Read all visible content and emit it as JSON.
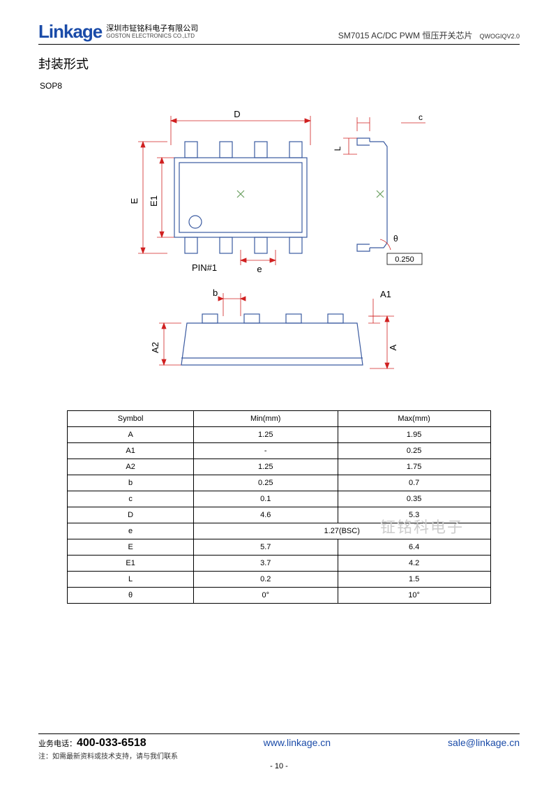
{
  "header": {
    "logo": "Linkage",
    "company_cn": "深圳市钲铭科电子有限公司",
    "company_en": "GOSTON ELECTRONICS CO.,LTD",
    "product": "SM7015 AC/DC PWM 恒压开关芯片",
    "doc_ver": "QWOGIQV2.0"
  },
  "section_title": "封装形式",
  "package_name": "SOP8",
  "watermark": "钲铭科电子",
  "diagram": {
    "type": "engineering-drawing",
    "labels": {
      "D": "D",
      "E": "E",
      "E1": "E1",
      "e": "e",
      "pin1": "PIN#1",
      "c": "c",
      "L": "L",
      "theta": "θ",
      "ref": "0.250",
      "b": "b",
      "A": "A",
      "A1": "A1",
      "A2": "A2"
    },
    "colors": {
      "outline": "#3a5aa0",
      "dimension": "#d02020",
      "background": "#ffffff"
    },
    "line_width_outline": 1.2,
    "line_width_dim": 0.8
  },
  "table": {
    "columns": [
      "Symbol",
      "Min(mm)",
      "Max(mm)"
    ],
    "rows": [
      [
        "A",
        "1.25",
        "1.95"
      ],
      [
        "A1",
        "-",
        "0.25"
      ],
      [
        "A2",
        "1.25",
        "1.75"
      ],
      [
        "b",
        "0.25",
        "0.7"
      ],
      [
        "c",
        "0.1",
        "0.35"
      ],
      [
        "D",
        "4.6",
        "5.3"
      ],
      [
        "e",
        {
          "colspan": 2,
          "value": "1.27(BSC)"
        }
      ],
      [
        "E",
        "5.7",
        "6.4"
      ],
      [
        "E1",
        "3.7",
        "4.2"
      ],
      [
        "L",
        "0.2",
        "1.5"
      ],
      [
        "θ",
        "0°",
        "10°"
      ]
    ]
  },
  "footer": {
    "phone_label": "业务电话：",
    "phone": "400-033-6518",
    "url": "www.linkage.cn",
    "email": "sale@linkage.cn",
    "note": "注：如需最新资料或技术支持，请与我们联系",
    "page": "- 10 -"
  }
}
